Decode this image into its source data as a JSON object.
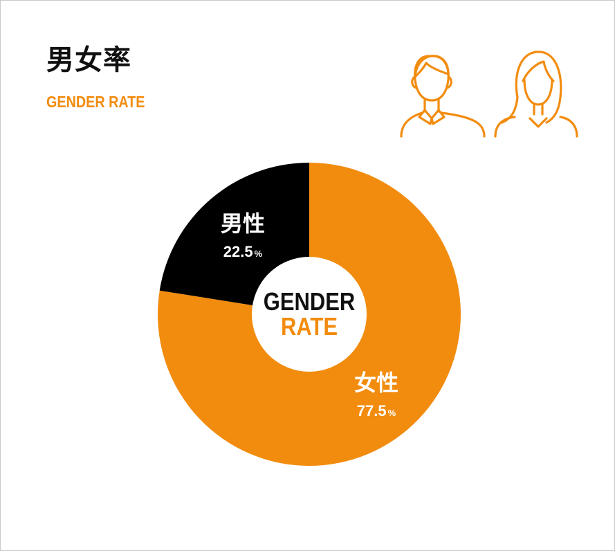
{
  "page": {
    "title": "男女率",
    "subtitle": "GENDER RATE",
    "icons": [
      "man-icon",
      "woman-icon"
    ]
  },
  "colors": {
    "accent": "#f28c0f",
    "male": "#000000",
    "center": "#ffffff",
    "center_text_top": "#111111"
  },
  "chart_data": {
    "type": "pie",
    "title": "男女率",
    "subtitle": "GENDER RATE",
    "center_label": [
      "GENDER",
      "RATE"
    ],
    "unit": "%",
    "series": [
      {
        "name": "男性",
        "value": 22.5,
        "label": "22.5",
        "color": "#000000"
      },
      {
        "name": "女性",
        "value": 77.5,
        "label": "77.5",
        "color": "#f28c0f"
      }
    ]
  }
}
